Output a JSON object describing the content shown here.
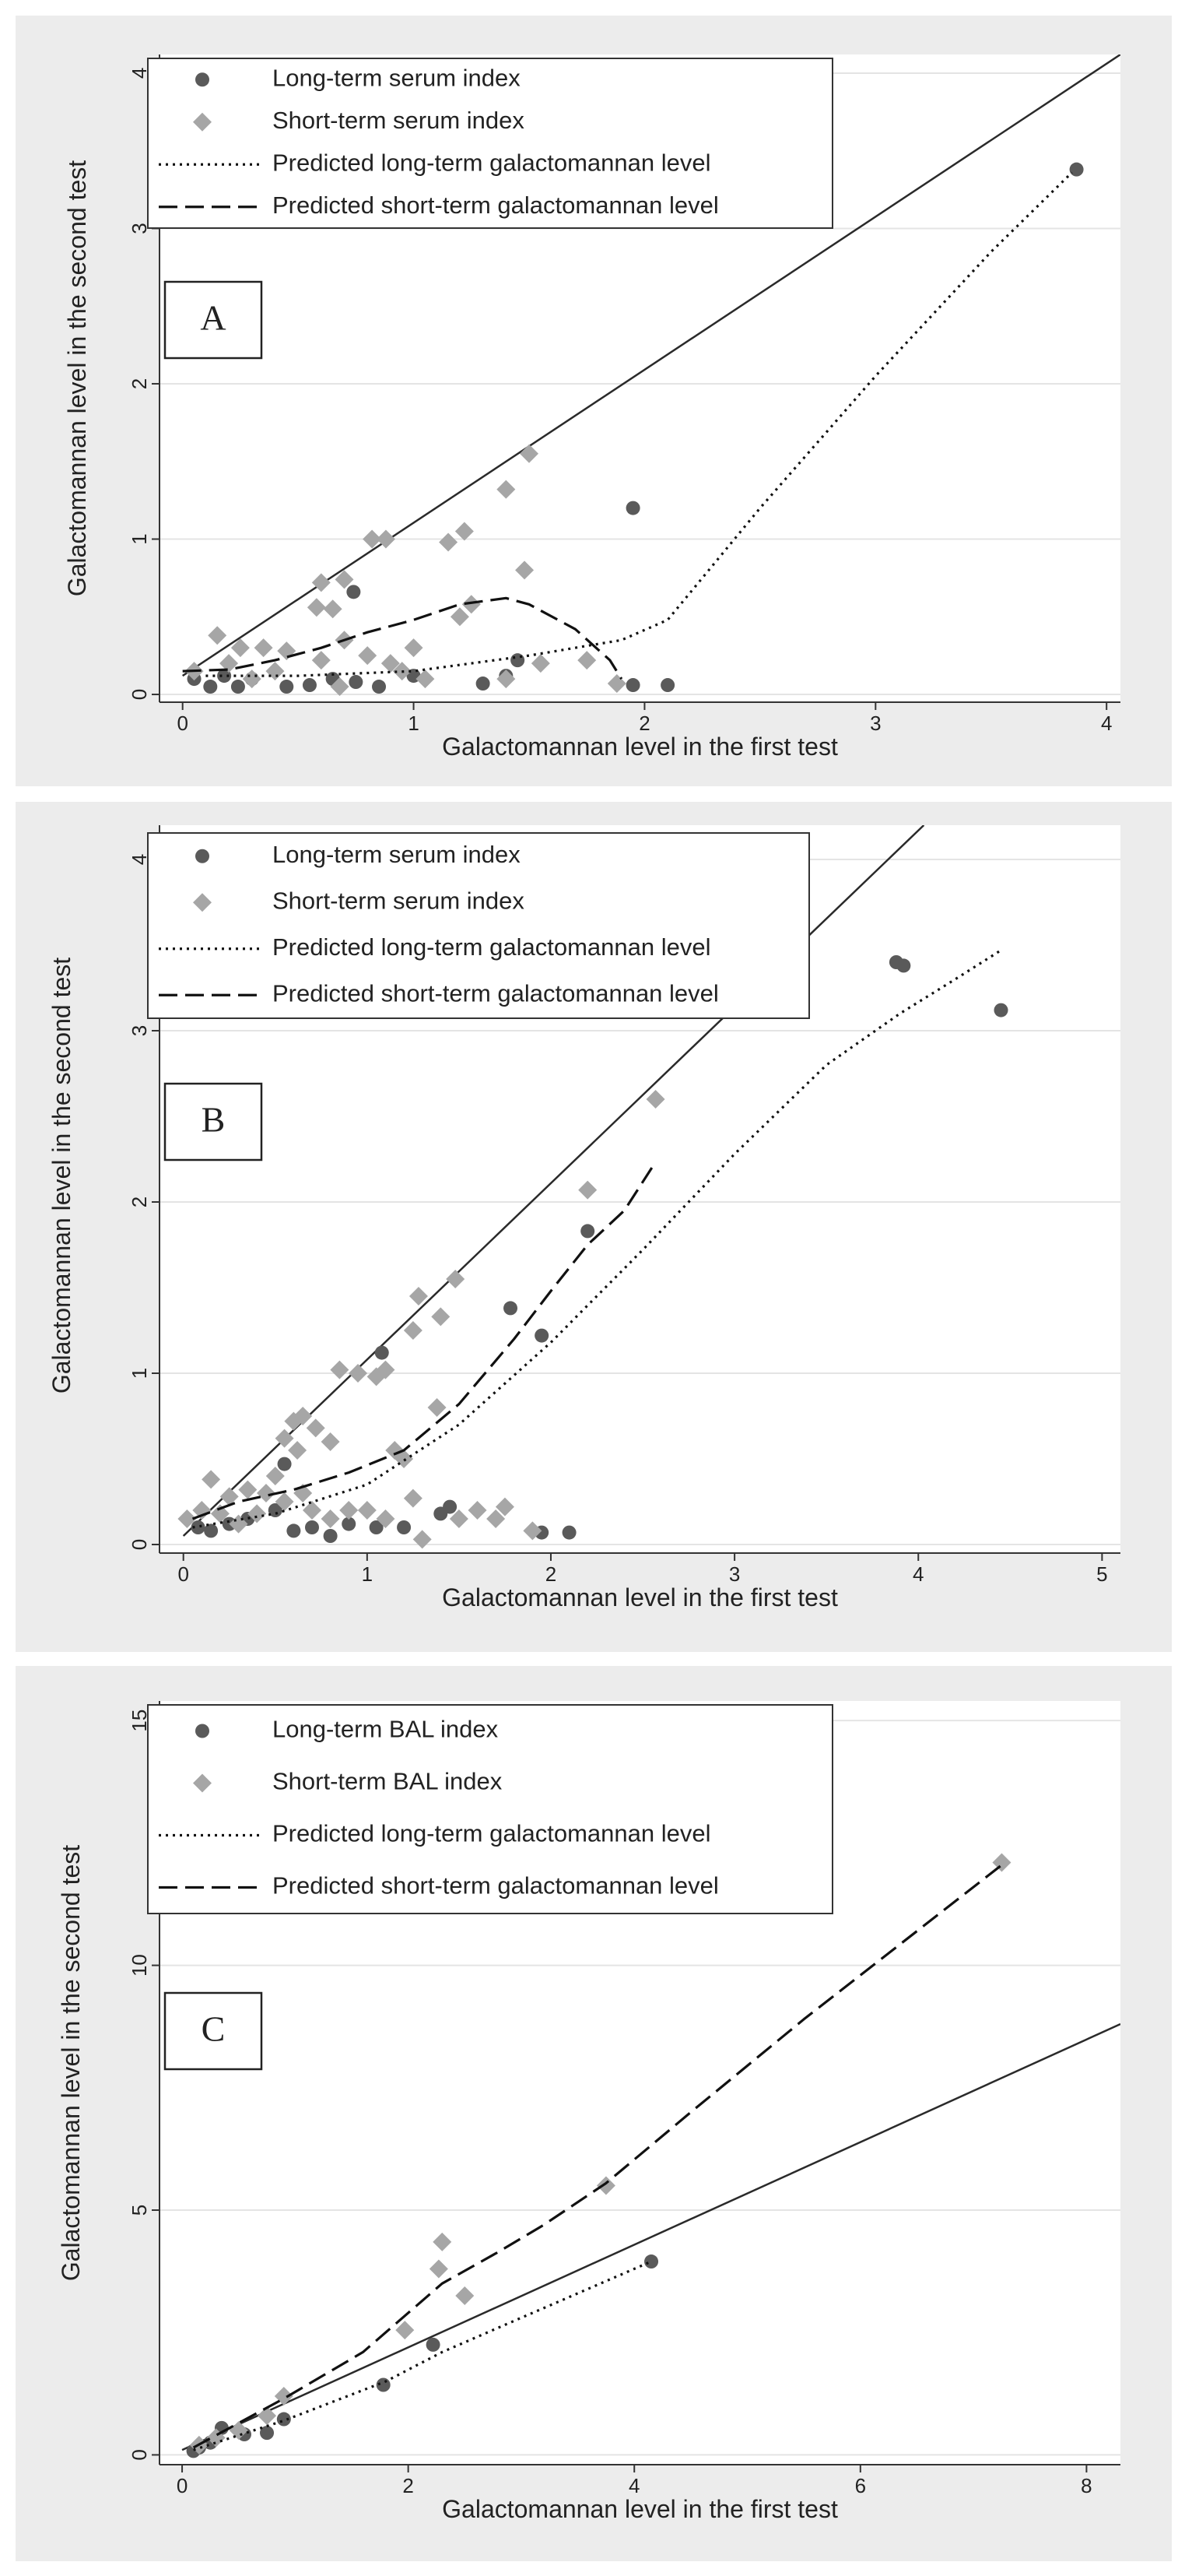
{
  "colors": {
    "panel_bg": "#ececec",
    "plot_bg": "#ffffff",
    "gridline": "#e4e4e4",
    "long_marker": "#5a5a5a",
    "short_marker": "#a6a6a6",
    "line": "#111111",
    "identity_line": "#2a2a2a"
  },
  "chart_data": [
    {
      "panel_label": "A",
      "type": "scatter",
      "xlabel": "Galactomannan level in the first test",
      "ylabel": "Galactomannan level in the second test",
      "xlim": [
        -0.1,
        4.06
      ],
      "ylim": [
        -0.05,
        4.12
      ],
      "xticks": [
        0,
        1,
        2,
        3,
        4
      ],
      "yticks": [
        0,
        1,
        2,
        3,
        4
      ],
      "grid": "horizontal",
      "legend_position": "top-left",
      "legend": [
        {
          "label": "Long-term serum index",
          "kind": "long"
        },
        {
          "label": "Short-term serum index",
          "kind": "short"
        },
        {
          "label": "Predicted long-term galactomannan level",
          "kind": "pred_long"
        },
        {
          "label": "Predicted short-term galactomannan level",
          "kind": "pred_short"
        }
      ],
      "identity_line": [
        [
          0.0,
          0.12
        ],
        [
          4.06,
          4.12
        ]
      ],
      "series": [
        {
          "name": "Long-term serum index",
          "kind": "long",
          "points": [
            [
              3.87,
              3.38
            ],
            [
              1.95,
              1.2
            ],
            [
              0.74,
              0.66
            ],
            [
              0.05,
              0.1
            ],
            [
              0.12,
              0.05
            ],
            [
              0.18,
              0.12
            ],
            [
              0.24,
              0.05
            ],
            [
              0.3,
              0.1
            ],
            [
              0.45,
              0.05
            ],
            [
              0.55,
              0.06
            ],
            [
              0.65,
              0.1
            ],
            [
              0.75,
              0.08
            ],
            [
              0.85,
              0.05
            ],
            [
              1.0,
              0.12
            ],
            [
              1.3,
              0.07
            ],
            [
              1.4,
              0.12
            ],
            [
              1.45,
              0.22
            ],
            [
              1.95,
              0.06
            ],
            [
              2.1,
              0.06
            ]
          ]
        },
        {
          "name": "Short-term serum index",
          "kind": "short",
          "points": [
            [
              1.5,
              1.55
            ],
            [
              1.4,
              1.32
            ],
            [
              1.15,
              0.98
            ],
            [
              0.88,
              1.0
            ],
            [
              0.82,
              1.0
            ],
            [
              0.6,
              0.72
            ],
            [
              0.7,
              0.74
            ],
            [
              0.65,
              0.55
            ],
            [
              0.58,
              0.56
            ],
            [
              1.22,
              1.05
            ],
            [
              1.48,
              0.8
            ],
            [
              1.25,
              0.58
            ],
            [
              1.2,
              0.5
            ],
            [
              0.45,
              0.28
            ],
            [
              0.35,
              0.3
            ],
            [
              0.25,
              0.3
            ],
            [
              0.15,
              0.38
            ],
            [
              0.05,
              0.15
            ],
            [
              0.2,
              0.2
            ],
            [
              0.3,
              0.1
            ],
            [
              0.4,
              0.15
            ],
            [
              0.6,
              0.22
            ],
            [
              0.7,
              0.35
            ],
            [
              0.8,
              0.25
            ],
            [
              0.9,
              0.2
            ],
            [
              1.0,
              0.3
            ],
            [
              1.05,
              0.1
            ],
            [
              1.4,
              0.1
            ],
            [
              1.55,
              0.2
            ],
            [
              1.75,
              0.22
            ],
            [
              1.88,
              0.07
            ],
            [
              0.95,
              0.15
            ],
            [
              0.68,
              0.05
            ]
          ]
        }
      ],
      "lines": [
        {
          "name": "Predicted long-term galactomannan level",
          "kind": "pred_long",
          "points": [
            [
              0.1,
              0.12
            ],
            [
              0.5,
              0.12
            ],
            [
              1.0,
              0.15
            ],
            [
              1.5,
              0.25
            ],
            [
              1.9,
              0.35
            ],
            [
              2.1,
              0.48
            ],
            [
              2.5,
              1.2
            ],
            [
              3.0,
              2.05
            ],
            [
              3.5,
              2.85
            ],
            [
              3.85,
              3.36
            ]
          ]
        },
        {
          "name": "Predicted short-term galactomannan level",
          "kind": "pred_short",
          "points": [
            [
              0.0,
              0.15
            ],
            [
              0.2,
              0.16
            ],
            [
              0.4,
              0.22
            ],
            [
              0.6,
              0.3
            ],
            [
              0.8,
              0.4
            ],
            [
              1.0,
              0.48
            ],
            [
              1.2,
              0.58
            ],
            [
              1.4,
              0.62
            ],
            [
              1.5,
              0.58
            ],
            [
              1.7,
              0.42
            ],
            [
              1.85,
              0.22
            ],
            [
              1.9,
              0.1
            ]
          ]
        }
      ]
    },
    {
      "panel_label": "B",
      "type": "scatter",
      "xlabel": "Galactomannan level in the first test",
      "ylabel": "Galactomannan level in the second test",
      "xlim": [
        -0.13,
        5.1
      ],
      "ylim": [
        -0.05,
        4.2
      ],
      "xticks": [
        0,
        1,
        2,
        3,
        4,
        5
      ],
      "yticks": [
        0,
        1,
        2,
        3,
        4
      ],
      "grid": "horizontal",
      "legend_position": "top-left",
      "legend": [
        {
          "label": "Long-term serum index",
          "kind": "long"
        },
        {
          "label": "Short-term serum index",
          "kind": "short"
        },
        {
          "label": "Predicted long-term galactomannan level",
          "kind": "pred_long"
        },
        {
          "label": "Predicted short-term galactomannan level",
          "kind": "pred_short"
        }
      ],
      "identity_line": [
        [
          0.0,
          0.05
        ],
        [
          4.03,
          4.2
        ]
      ],
      "series": [
        {
          "name": "Long-term serum index",
          "kind": "long",
          "points": [
            [
              3.88,
              3.4
            ],
            [
              3.92,
              3.38
            ],
            [
              4.45,
              3.12
            ],
            [
              2.2,
              1.83
            ],
            [
              1.78,
              1.38
            ],
            [
              1.95,
              1.22
            ],
            [
              1.08,
              1.12
            ],
            [
              0.55,
              0.47
            ],
            [
              0.08,
              0.1
            ],
            [
              0.15,
              0.08
            ],
            [
              0.25,
              0.12
            ],
            [
              0.35,
              0.15
            ],
            [
              0.5,
              0.2
            ],
            [
              0.6,
              0.08
            ],
            [
              0.7,
              0.1
            ],
            [
              0.8,
              0.05
            ],
            [
              0.9,
              0.12
            ],
            [
              1.05,
              0.1
            ],
            [
              1.2,
              0.1
            ],
            [
              1.4,
              0.18
            ],
            [
              1.45,
              0.22
            ],
            [
              1.95,
              0.07
            ],
            [
              2.1,
              0.07
            ]
          ]
        },
        {
          "name": "Short-term serum index",
          "kind": "short",
          "points": [
            [
              2.57,
              2.6
            ],
            [
              2.2,
              2.07
            ],
            [
              1.48,
              1.55
            ],
            [
              1.28,
              1.45
            ],
            [
              1.25,
              1.25
            ],
            [
              1.4,
              1.33
            ],
            [
              1.1,
              1.02
            ],
            [
              0.85,
              1.02
            ],
            [
              0.95,
              1.0
            ],
            [
              1.05,
              0.98
            ],
            [
              1.38,
              0.8
            ],
            [
              0.6,
              0.72
            ],
            [
              0.65,
              0.75
            ],
            [
              0.72,
              0.68
            ],
            [
              0.55,
              0.62
            ],
            [
              0.8,
              0.6
            ],
            [
              0.62,
              0.55
            ],
            [
              1.15,
              0.55
            ],
            [
              1.2,
              0.5
            ],
            [
              1.25,
              0.27
            ],
            [
              0.5,
              0.4
            ],
            [
              0.45,
              0.3
            ],
            [
              0.35,
              0.32
            ],
            [
              0.25,
              0.28
            ],
            [
              0.15,
              0.38
            ],
            [
              0.02,
              0.15
            ],
            [
              0.1,
              0.2
            ],
            [
              0.2,
              0.18
            ],
            [
              0.3,
              0.12
            ],
            [
              0.4,
              0.18
            ],
            [
              0.55,
              0.25
            ],
            [
              0.65,
              0.3
            ],
            [
              0.7,
              0.2
            ],
            [
              0.8,
              0.15
            ],
            [
              0.9,
              0.2
            ],
            [
              1.0,
              0.2
            ],
            [
              1.1,
              0.15
            ],
            [
              1.3,
              0.03
            ],
            [
              1.5,
              0.15
            ],
            [
              1.6,
              0.2
            ],
            [
              1.7,
              0.15
            ],
            [
              1.75,
              0.22
            ],
            [
              1.9,
              0.08
            ]
          ]
        }
      ],
      "lines": [
        {
          "name": "Predicted long-term galactomannan level",
          "kind": "pred_long",
          "points": [
            [
              0.05,
              0.1
            ],
            [
              0.5,
              0.18
            ],
            [
              1.0,
              0.35
            ],
            [
              1.5,
              0.7
            ],
            [
              2.0,
              1.18
            ],
            [
              2.5,
              1.72
            ],
            [
              3.0,
              2.28
            ],
            [
              3.5,
              2.8
            ],
            [
              3.9,
              3.1
            ],
            [
              4.2,
              3.3
            ],
            [
              4.45,
              3.47
            ]
          ]
        },
        {
          "name": "Predicted short-term galactomannan level",
          "kind": "pred_short",
          "points": [
            [
              0.05,
              0.15
            ],
            [
              0.3,
              0.25
            ],
            [
              0.6,
              0.32
            ],
            [
              0.9,
              0.42
            ],
            [
              1.2,
              0.55
            ],
            [
              1.5,
              0.82
            ],
            [
              1.8,
              1.2
            ],
            [
              2.0,
              1.48
            ],
            [
              2.2,
              1.75
            ],
            [
              2.4,
              1.95
            ],
            [
              2.55,
              2.2
            ]
          ]
        }
      ]
    },
    {
      "panel_label": "C",
      "type": "scatter",
      "xlabel": "Galactomannan level in the first test",
      "ylabel": "Galactomannan level in the second test",
      "xlim": [
        -0.2,
        8.3
      ],
      "ylim": [
        -0.2,
        15.4
      ],
      "xticks": [
        0,
        2,
        4,
        6,
        8
      ],
      "yticks": [
        0,
        5,
        10,
        15
      ],
      "grid": "horizontal",
      "legend_position": "top-left",
      "legend": [
        {
          "label": "Long-term BAL index",
          "kind": "long"
        },
        {
          "label": "Short-term BAL index",
          "kind": "short"
        },
        {
          "label": "Predicted long-term galactomannan level",
          "kind": "pred_long"
        },
        {
          "label": "Predicted short-term galactomannan level",
          "kind": "pred_short"
        }
      ],
      "identity_line": [
        [
          0.0,
          0.1
        ],
        [
          8.3,
          8.8
        ]
      ],
      "series": [
        {
          "name": "Long-term BAL index",
          "kind": "long",
          "points": [
            [
              4.15,
              3.95
            ],
            [
              2.22,
              2.25
            ],
            [
              1.78,
              1.43
            ],
            [
              0.9,
              0.73
            ],
            [
              0.75,
              0.45
            ],
            [
              0.55,
              0.42
            ],
            [
              0.35,
              0.55
            ],
            [
              0.25,
              0.25
            ],
            [
              0.15,
              0.15
            ],
            [
              0.1,
              0.08
            ]
          ]
        },
        {
          "name": "Short-term BAL index",
          "kind": "short",
          "points": [
            [
              7.25,
              12.1
            ],
            [
              3.75,
              5.5
            ],
            [
              2.3,
              4.35
            ],
            [
              2.27,
              3.8
            ],
            [
              2.5,
              3.25
            ],
            [
              1.97,
              2.55
            ],
            [
              0.9,
              1.2
            ],
            [
              0.75,
              0.8
            ],
            [
              0.5,
              0.5
            ],
            [
              0.3,
              0.35
            ],
            [
              0.15,
              0.2
            ]
          ]
        }
      ],
      "lines": [
        {
          "name": "Predicted long-term galactomannan level",
          "kind": "pred_long",
          "points": [
            [
              0.1,
              0.1
            ],
            [
              0.9,
              0.7
            ],
            [
              1.8,
              1.5
            ],
            [
              2.3,
              2.1
            ],
            [
              3.0,
              2.8
            ],
            [
              3.5,
              3.3
            ],
            [
              4.15,
              3.95
            ]
          ]
        },
        {
          "name": "Predicted short-term galactomannan level",
          "kind": "pred_short",
          "points": [
            [
              0.1,
              0.15
            ],
            [
              0.9,
              1.15
            ],
            [
              1.6,
              2.1
            ],
            [
              2.0,
              2.9
            ],
            [
              2.3,
              3.5
            ],
            [
              2.8,
              4.15
            ],
            [
              3.2,
              4.7
            ],
            [
              3.75,
              5.55
            ],
            [
              4.5,
              7.0
            ],
            [
              5.5,
              8.9
            ],
            [
              6.5,
              10.7
            ],
            [
              7.25,
              12.05
            ]
          ]
        }
      ]
    }
  ]
}
